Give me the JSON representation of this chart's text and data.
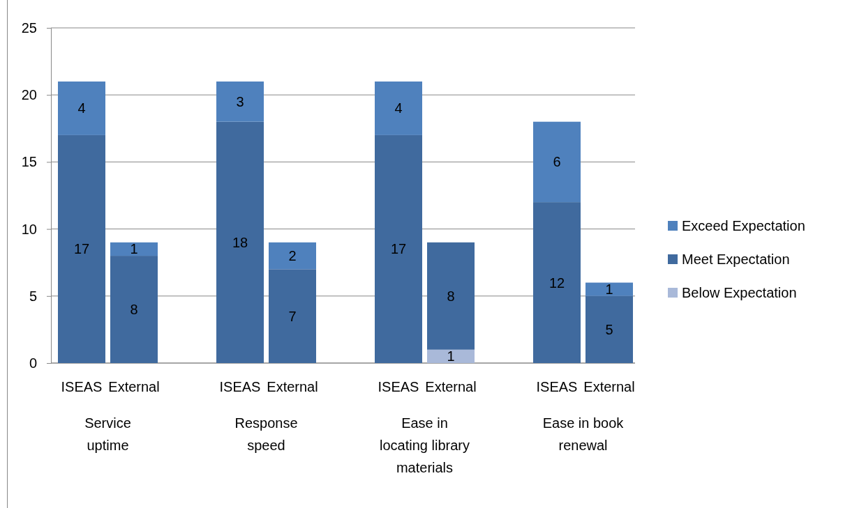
{
  "chart_data": {
    "type": "bar",
    "stacked": true,
    "categories": [
      "ISEAS",
      "External",
      "ISEAS",
      "External",
      "ISEAS",
      "External",
      "ISEAS",
      "External"
    ],
    "series": [
      {
        "name": "Below Expectation",
        "color": "#a9b9d9",
        "values": [
          null,
          null,
          null,
          null,
          null,
          1,
          null,
          null
        ]
      },
      {
        "name": "Meet Expectation",
        "color": "#406a9e",
        "values": [
          17,
          8,
          18,
          7,
          17,
          8,
          12,
          5
        ]
      },
      {
        "name": "Exceed Expectation",
        "color": "#4f81bd",
        "values": [
          4,
          1,
          3,
          2,
          4,
          null,
          6,
          1
        ]
      }
    ],
    "annotations": [
      "Service uptime",
      "Response speed",
      "Ease in locating library materials",
      "Ease in book renewal"
    ],
    "ylim": [
      0,
      25
    ],
    "yticks": [
      0,
      5,
      10,
      15,
      20,
      25
    ],
    "grid": "y",
    "legend": "right",
    "data_labels": true
  }
}
